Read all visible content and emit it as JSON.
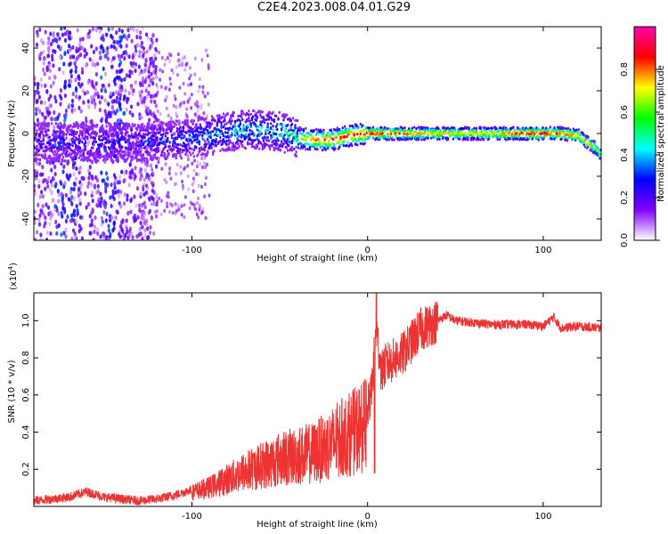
{
  "title": "C2E4.2023.008.04.01.G29",
  "colors": {
    "snr_line": "#ee3333",
    "axis": "#000000"
  },
  "chart_data": [
    {
      "type": "heatmap",
      "xlabel": "Height of straight line (km)",
      "ylabel": "Frequency (Hz)",
      "xlim": [
        -190,
        133
      ],
      "ylim": [
        -50,
        50
      ],
      "x_ticks": [
        -100,
        0,
        100
      ],
      "x_tick_labels": [
        "-100",
        "0",
        "100"
      ],
      "y_ticks": [
        -40,
        -20,
        0,
        20,
        40
      ],
      "y_tick_labels": [
        "-40",
        "-20",
        "0",
        "20",
        "40"
      ],
      "colorbar": {
        "label": "Normalized spectral amplitude",
        "range": [
          0,
          1
        ],
        "ticks": [
          0.0,
          0.2,
          0.4,
          0.6,
          0.8
        ],
        "tick_labels": [
          "0.0",
          "0.2",
          "0.4",
          "0.6",
          "0.8"
        ],
        "colormap": [
          "#ffffff",
          "#8000ff",
          "#0000ff",
          "#00ffff",
          "#00ff00",
          "#ffff00",
          "#ff0000",
          "#ff00aa"
        ]
      },
      "ridge": {
        "x": [
          -130,
          -110,
          -90,
          -70,
          -50,
          -40,
          -30,
          -20,
          -10,
          0,
          10,
          30,
          50,
          70,
          90,
          100,
          110,
          120,
          125,
          130,
          133
        ],
        "freq": [
          -4,
          -3,
          -1,
          2,
          1,
          -2,
          -3,
          -3,
          -1,
          0,
          0,
          0,
          0,
          0,
          0,
          0,
          0,
          -1,
          -4,
          -7,
          -10
        ],
        "amplitude": [
          0.35,
          0.4,
          0.45,
          0.5,
          0.55,
          0.6,
          0.85,
          0.9,
          0.9,
          0.9,
          0.92,
          0.8,
          0.75,
          0.75,
          0.95,
          0.98,
          0.85,
          0.8,
          0.8,
          0.7,
          0.6
        ]
      }
    },
    {
      "type": "line",
      "xlabel": "Height of straight line (km)",
      "ylabel": "SNR (10 * v/v)",
      "y_multiplier_label": "(x10",
      "y_multiplier_exp": "4",
      "y_multiplier_close": ")",
      "xlim": [
        -190,
        133
      ],
      "ylim": [
        0,
        1.15
      ],
      "x_ticks": [
        -100,
        0,
        100
      ],
      "x_tick_labels": [
        "-100",
        "0",
        "100"
      ],
      "y_ticks": [
        0.2,
        0.4,
        0.6,
        0.8,
        1.0
      ],
      "y_tick_labels": [
        "0.2",
        "0.4",
        "0.6",
        "0.8",
        "1.0"
      ],
      "series": [
        {
          "x": [
            -190,
            -180,
            -170,
            -160,
            -150,
            -140,
            -130,
            -120,
            -110,
            -100,
            -90,
            -80,
            -70,
            -60,
            -50,
            -40,
            -30,
            -20,
            -10,
            0,
            2,
            5,
            8,
            10,
            20,
            30,
            40,
            45,
            50,
            60,
            70,
            80,
            90,
            100,
            106,
            110,
            120,
            133
          ],
          "y": [
            0.03,
            0.04,
            0.05,
            0.08,
            0.05,
            0.04,
            0.03,
            0.04,
            0.06,
            0.09,
            0.12,
            0.17,
            0.22,
            0.26,
            0.3,
            0.32,
            0.34,
            0.4,
            0.46,
            0.52,
            0.6,
            0.95,
            0.72,
            0.76,
            0.82,
            0.95,
            1.0,
            1.03,
            1.0,
            0.99,
            0.98,
            0.98,
            0.98,
            0.97,
            1.02,
            0.96,
            0.97,
            0.96
          ]
        }
      ]
    }
  ]
}
